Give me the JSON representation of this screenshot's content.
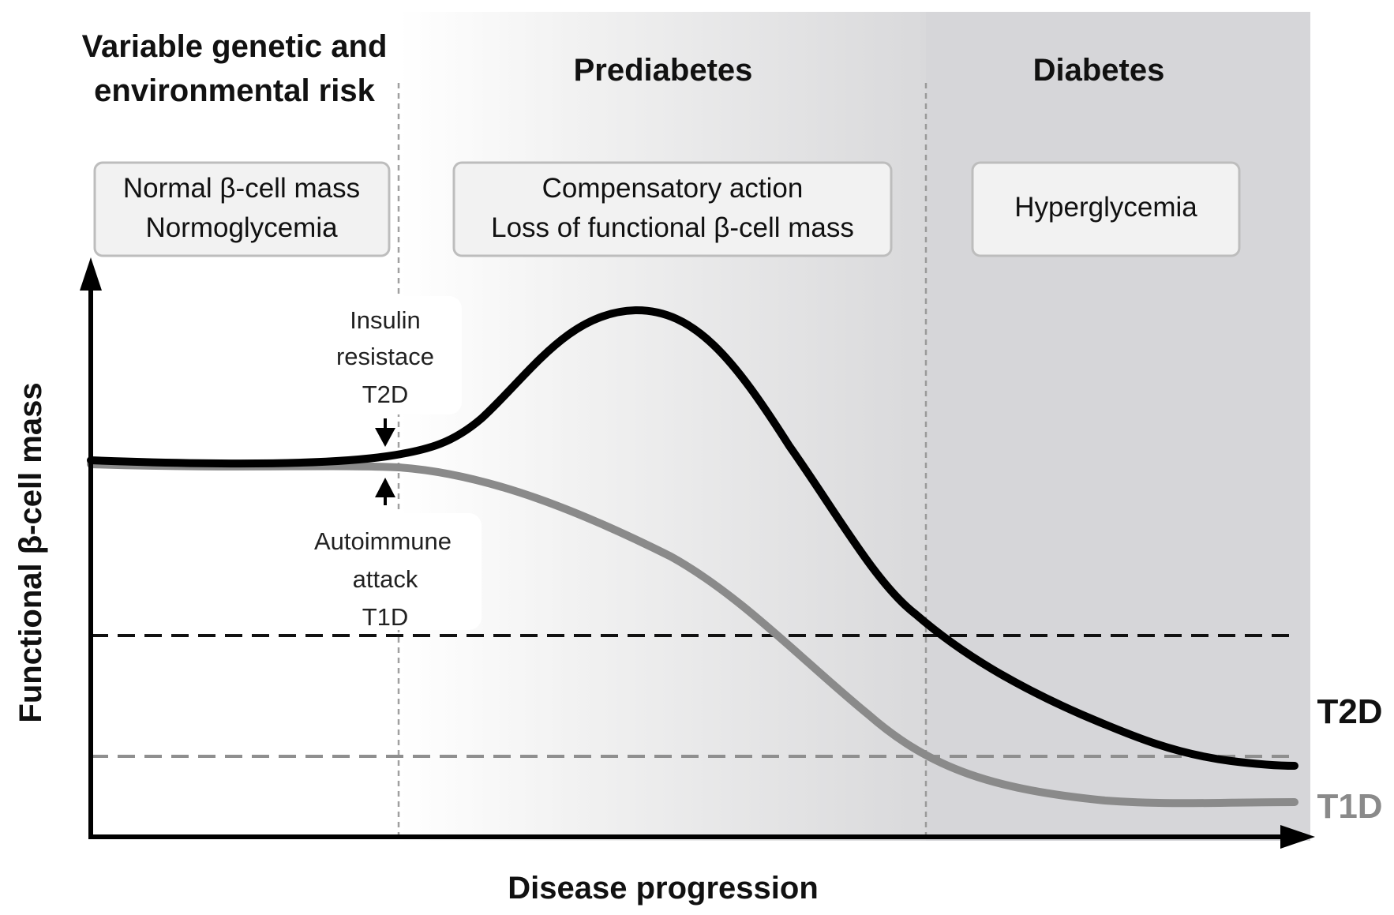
{
  "headers": {
    "risk_line1": "Variable genetic and",
    "risk_line2": "environmental risk",
    "prediabetes": "Prediabetes",
    "diabetes": "Diabetes"
  },
  "boxes": {
    "normal": {
      "line1": "Normal β-cell mass",
      "line2": "Normoglycemia"
    },
    "compensatory": {
      "line1": "Compensatory action",
      "line2": "Loss of functional β-cell mass"
    },
    "hyper": {
      "line1": "Hyperglycemia"
    }
  },
  "annotations": {
    "insulin": {
      "line1": "Insulin",
      "line2": "resistace",
      "line3": "T2D"
    },
    "autoimmune": {
      "line1": "Autoimmune",
      "line2": "attack",
      "line3": "T1D"
    }
  },
  "axes": {
    "y_label": "Functional β-cell mass",
    "x_label": "Disease progression"
  },
  "series": {
    "t2d": {
      "label": "T2D",
      "color": "#000000"
    },
    "t1d": {
      "label": "T1D",
      "color": "#8a8a8a"
    }
  },
  "colors": {
    "diabetes_zone": "#d6d6d9",
    "threshold_t2d": "#111111",
    "threshold_t1d": "#8f8f8f",
    "divider": "#9a9a9a"
  }
}
